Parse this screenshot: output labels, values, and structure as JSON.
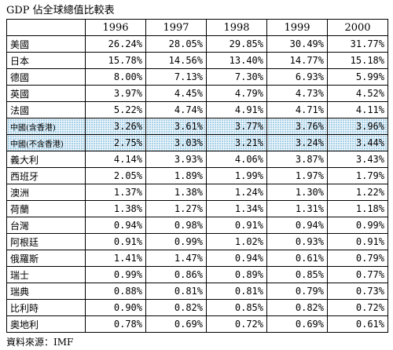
{
  "header": {
    "title": "GDP 佔全球總值比較表"
  },
  "table": {
    "columns": [
      "1996",
      "1997",
      "1998",
      "1999",
      "2000"
    ],
    "rows": [
      [
        "美國",
        "26.24%",
        "28.05%",
        "29.85%",
        "30.49%",
        "31.77%"
      ],
      [
        "日本",
        "15.78%",
        "14.56%",
        "13.40%",
        "14.77%",
        "15.18%"
      ],
      [
        "德國",
        "8.00%",
        "7.13%",
        "7.30%",
        "6.93%",
        "5.99%"
      ],
      [
        "英國",
        "3.97%",
        "4.45%",
        "4.79%",
        "4.73%",
        "4.52%"
      ],
      [
        "法國",
        "5.22%",
        "4.74%",
        "4.91%",
        "4.71%",
        "4.11%"
      ],
      [
        "中國(含香港)",
        "3.26%",
        "3.61%",
        "3.77%",
        "3.76%",
        "3.96%"
      ],
      [
        "中國(不含香港)",
        "2.75%",
        "3.03%",
        "3.21%",
        "3.24%",
        "3.44%"
      ],
      [
        "義大利",
        "4.14%",
        "3.93%",
        "4.06%",
        "3.87%",
        "3.43%"
      ],
      [
        "西班牙",
        "2.05%",
        "1.89%",
        "1.99%",
        "1.97%",
        "1.79%"
      ],
      [
        "澳洲",
        "1.37%",
        "1.38%",
        "1.24%",
        "1.30%",
        "1.22%"
      ],
      [
        "荷蘭",
        "1.38%",
        "1.27%",
        "1.34%",
        "1.31%",
        "1.18%"
      ],
      [
        "台灣",
        "0.94%",
        "0.98%",
        "0.91%",
        "0.94%",
        "0.99%"
      ],
      [
        "阿根廷",
        "0.91%",
        "0.99%",
        "1.02%",
        "0.93%",
        "0.91%"
      ],
      [
        "俄羅斯",
        "1.41%",
        "1.47%",
        "0.94%",
        "0.61%",
        "0.79%"
      ],
      [
        "瑞士",
        "0.99%",
        "0.86%",
        "0.89%",
        "0.85%",
        "0.77%"
      ],
      [
        "瑞典",
        "0.88%",
        "0.81%",
        "0.81%",
        "0.79%",
        "0.73%"
      ],
      [
        "比利時",
        "0.90%",
        "0.82%",
        "0.85%",
        "0.82%",
        "0.72%"
      ],
      [
        "奧地利",
        "0.78%",
        "0.69%",
        "0.72%",
        "0.69%",
        "0.61%"
      ]
    ]
  },
  "footer": {
    "source": "資料來源：IMF"
  }
}
